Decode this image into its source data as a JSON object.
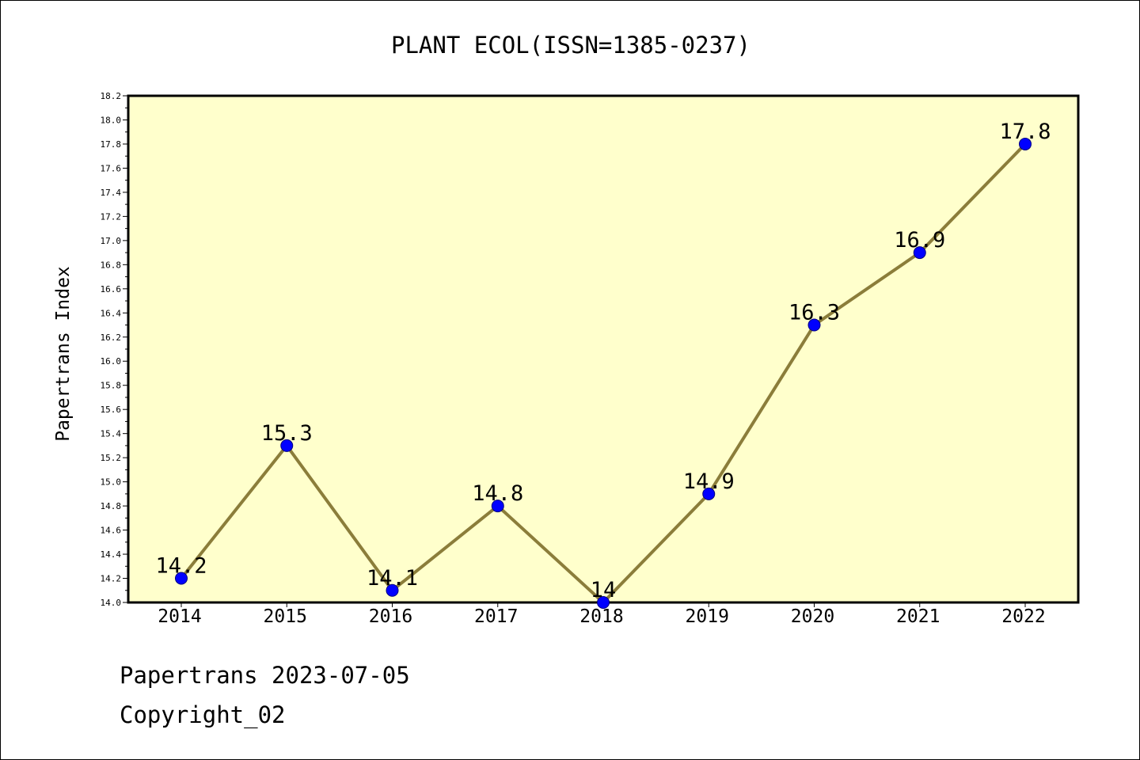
{
  "footer": {
    "line1": "Papertrans 2023-07-05",
    "line2": "Copyright_02"
  },
  "chart_data": {
    "type": "line",
    "title": "PLANT ECOL(ISSN=1385-0237)",
    "xlabel": "",
    "ylabel": "Papertrans Index",
    "categories": [
      "2014",
      "2015",
      "2016",
      "2017",
      "2018",
      "2019",
      "2020",
      "2021",
      "2022"
    ],
    "series": [
      {
        "values": [
          14.2,
          15.3,
          14.1,
          14.8,
          14.0,
          14.9,
          16.3,
          16.9,
          17.8
        ],
        "data_labels": [
          "14.2",
          "15.3",
          "14.1",
          "14.8",
          "14",
          "14.9",
          "16.3",
          "16.9",
          "17.8"
        ]
      }
    ],
    "ylim": [
      14.0,
      18.2
    ],
    "yticks": [
      "14.0",
      "14.2",
      "14.4",
      "14.6",
      "14.8",
      "15.0",
      "15.2",
      "15.4",
      "15.6",
      "15.8",
      "16.0",
      "16.2",
      "16.4",
      "16.6",
      "16.8",
      "17.0",
      "17.2",
      "17.4",
      "17.6",
      "17.8",
      "18.0",
      "18.2"
    ],
    "grid": false,
    "legend": "none",
    "colors": {
      "plot_background": "#ffffcc",
      "line": "#8b7d3a",
      "marker_fill": "#0000ff",
      "marker_edge": "#000080"
    }
  }
}
